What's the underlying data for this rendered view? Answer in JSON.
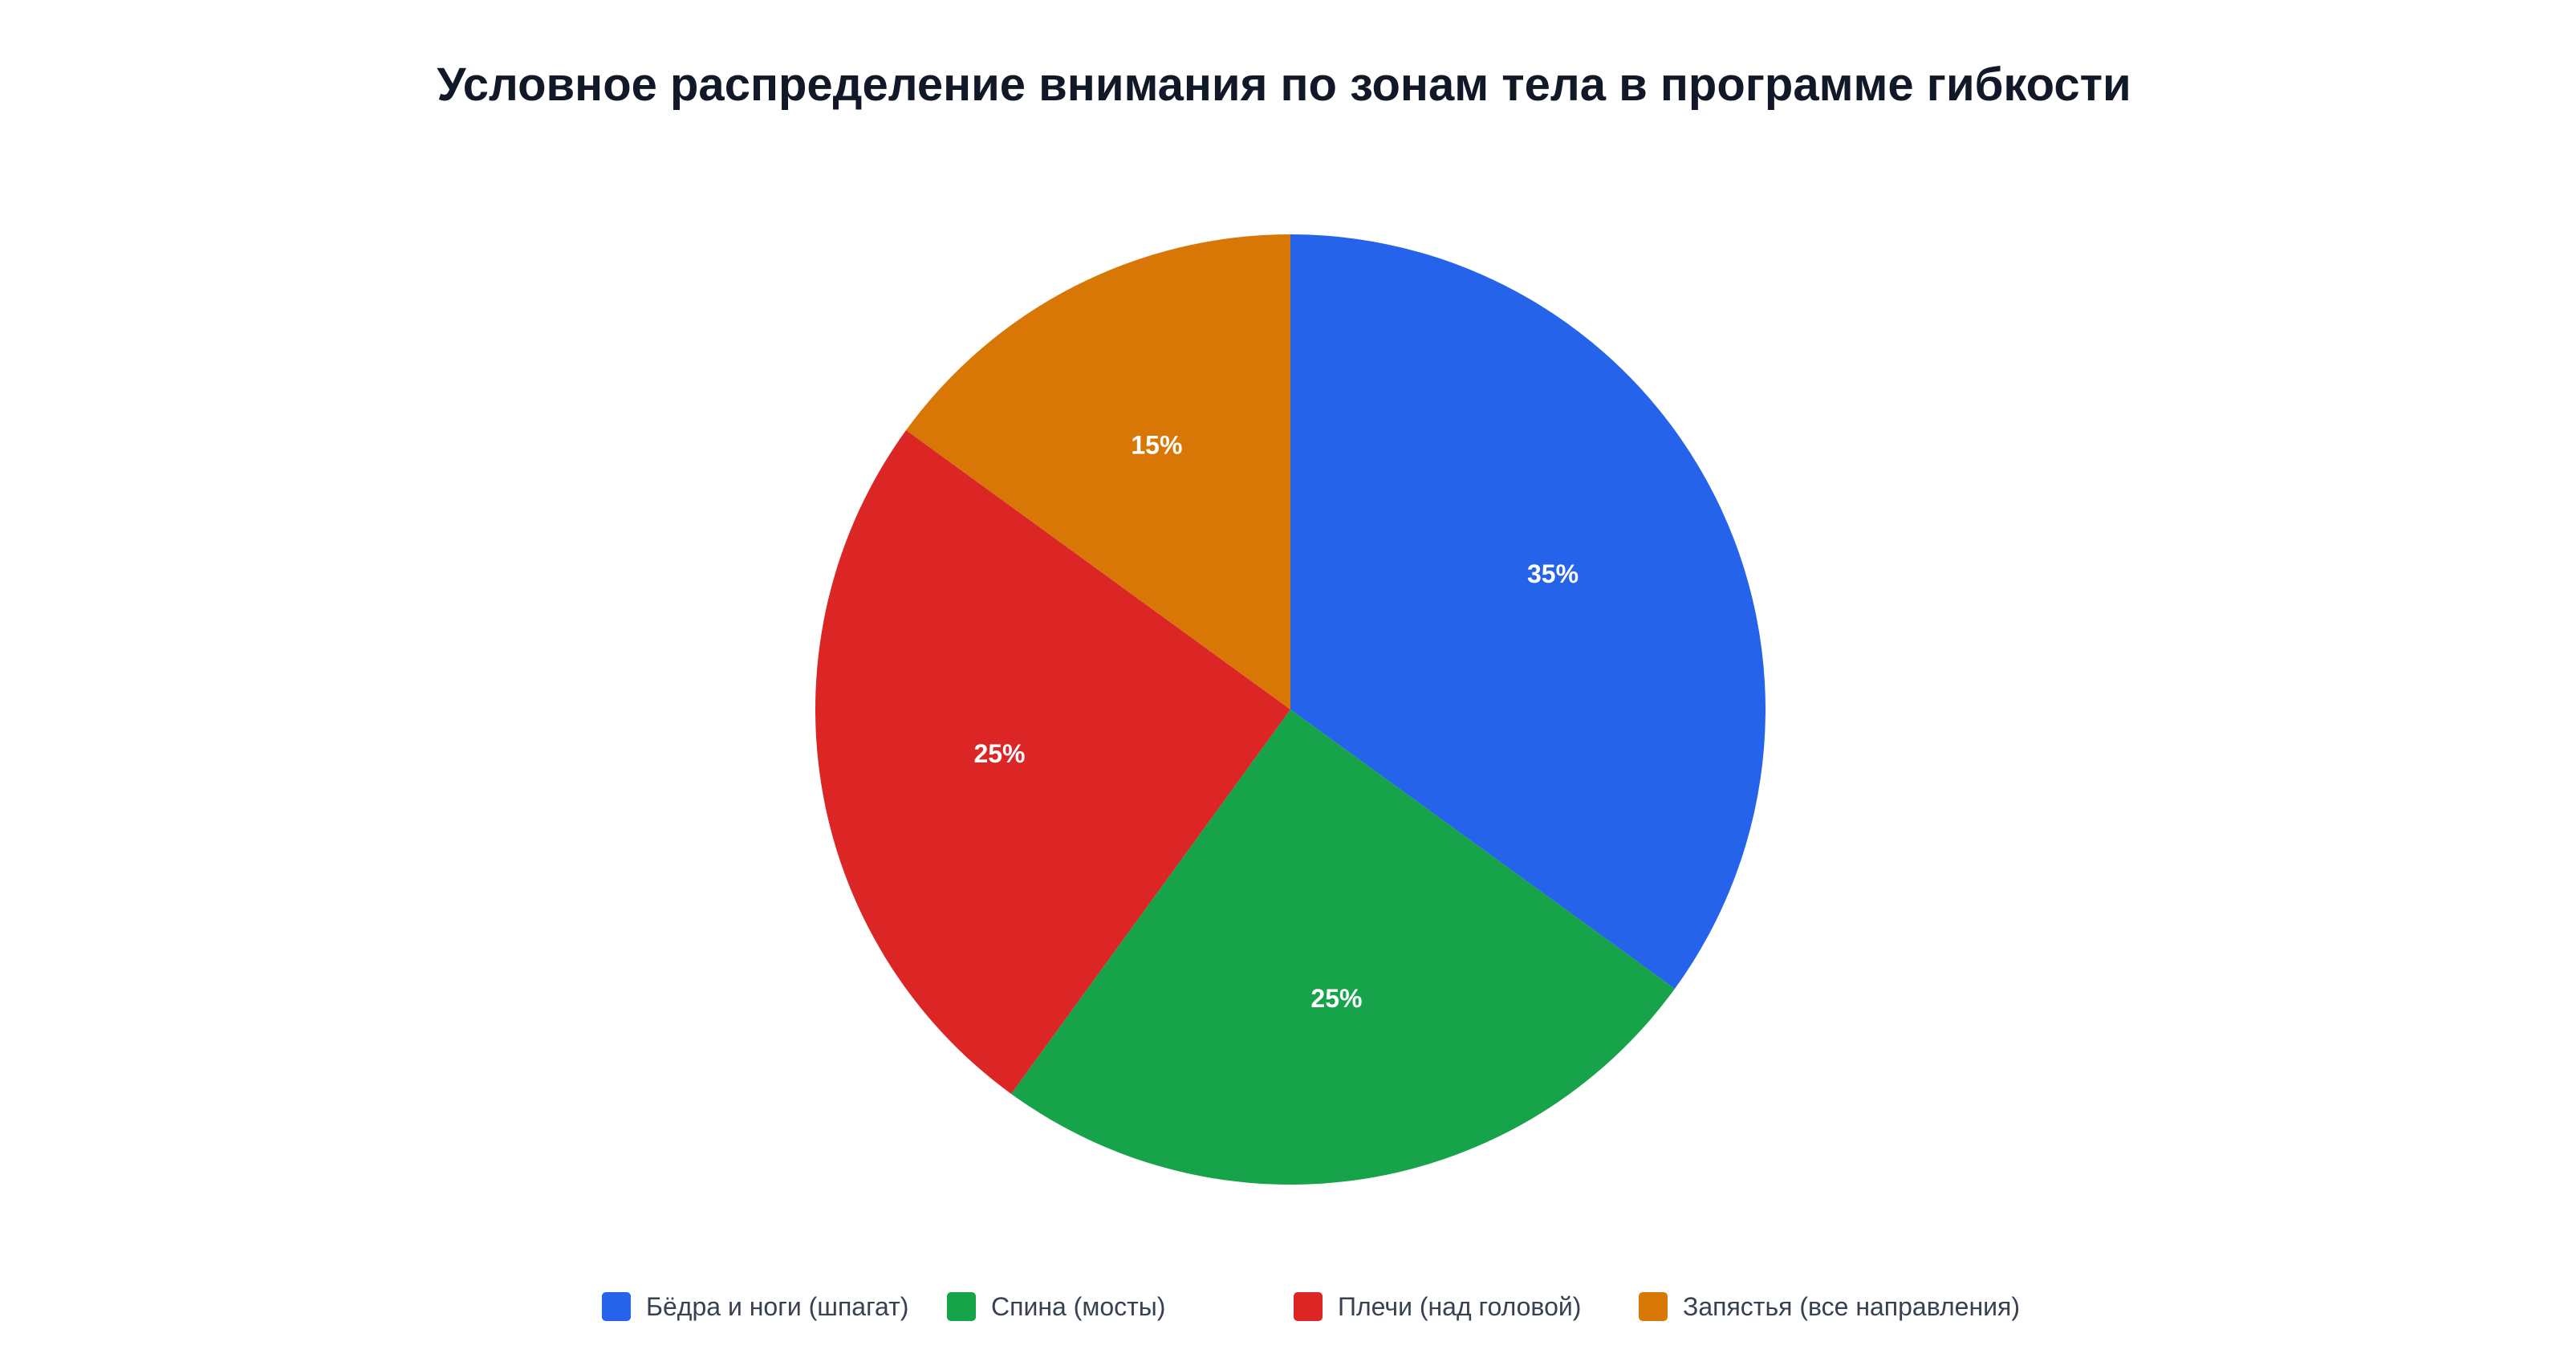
{
  "chart_data": {
    "type": "pie",
    "title": "Условное распределение внимания по зонам тела в программе гибкости",
    "legend_position": "bottom",
    "slices": [
      {
        "label": "Бёдра и ноги (шпагат)",
        "value": 35,
        "value_label": "35%",
        "color": "#2563EB"
      },
      {
        "label": "Спина (мосты)",
        "value": 25,
        "value_label": "25%",
        "color": "#16A34A"
      },
      {
        "label": "Плечи (над головой)",
        "value": 25,
        "value_label": "25%",
        "color": "#DC2626"
      },
      {
        "label": "Запястья (все направления)",
        "value": 15,
        "value_label": "15%",
        "color": "#D97706"
      }
    ]
  }
}
